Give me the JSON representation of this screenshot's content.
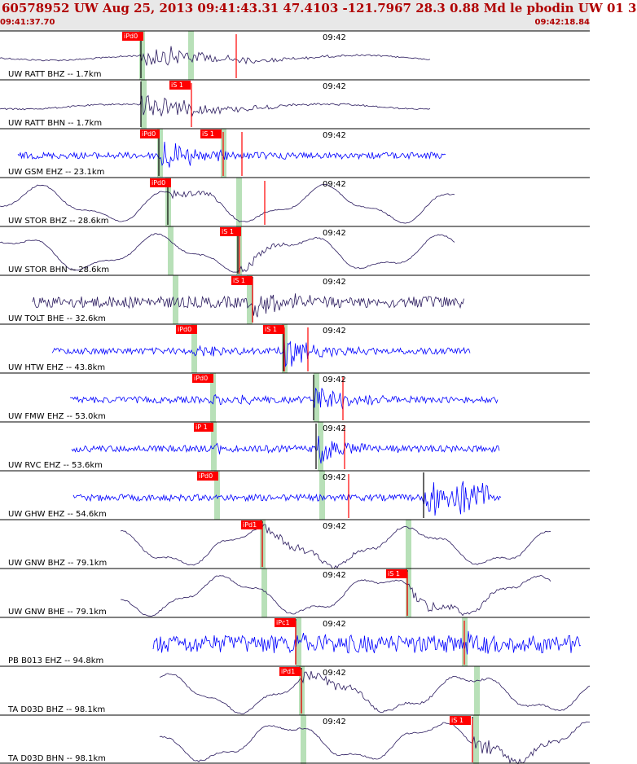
{
  "header": {
    "title": "60578952 UW Aug 25, 2013 09:41:43.31    47.4103 -121.7967 28.3 0.88 Md le pbodin UW 01    3",
    "start_time": "09:41:37.70",
    "end_time": "09:42:18.84"
  },
  "colors": {
    "dark": "#2a1a5e",
    "blue": "#0000ff",
    "pick": "#ff0000",
    "theory": "#b8e0b8"
  },
  "traces": [
    {
      "label": "UW RATT BHZ -- 1.7km",
      "color": "dark",
      "time_label": "09:42",
      "picks": [
        {
          "text": "iPd0"
        }
      ]
    },
    {
      "label": "UW RATT BHN -- 1.7km",
      "color": "dark",
      "time_label": "09:42",
      "picks": [
        {
          "text": "iS 1"
        }
      ]
    },
    {
      "label": "UW GSM EHZ -- 23.1km",
      "color": "blue",
      "time_label": "09:42",
      "picks": [
        {
          "text": "iPd0"
        },
        {
          "text": "iS 1"
        }
      ]
    },
    {
      "label": "UW STOR BHZ -- 28.6km",
      "color": "dark",
      "time_label": "09:42",
      "picks": [
        {
          "text": "iPd0"
        }
      ]
    },
    {
      "label": "UW STOR BHN -- 28.6km",
      "color": "dark",
      "time_label": "09:42",
      "picks": [
        {
          "text": "iS 1"
        }
      ]
    },
    {
      "label": "UW TOLT BHE -- 32.6km",
      "color": "dark",
      "time_label": "09:42",
      "picks": [
        {
          "text": "iS 1"
        }
      ]
    },
    {
      "label": "UW HTW EHZ -- 43.8km",
      "color": "blue",
      "time_label": "09:42",
      "picks": [
        {
          "text": "iPd0"
        },
        {
          "text": "iS 1"
        }
      ]
    },
    {
      "label": "UW FMW EHZ -- 53.0km",
      "color": "blue",
      "time_label": "09:42",
      "picks": [
        {
          "text": "iPd0"
        }
      ]
    },
    {
      "label": "UW RVC EHZ -- 53.6km",
      "color": "blue",
      "time_label": "09:42",
      "picks": [
        {
          "text": "iP 1"
        }
      ]
    },
    {
      "label": "UW GHW EHZ -- 54.6km",
      "color": "blue",
      "time_label": "09:42",
      "picks": [
        {
          "text": "iPd0"
        }
      ]
    },
    {
      "label": "UW GNW BHZ -- 79.1km",
      "color": "dark",
      "time_label": "09:42",
      "picks": [
        {
          "text": "iPd1"
        }
      ]
    },
    {
      "label": "UW GNW BHE -- 79.1km",
      "color": "dark",
      "time_label": "09:42",
      "picks": [
        {
          "text": "iS 1"
        }
      ]
    },
    {
      "label": "PB B013 EHZ -- 94.8km",
      "color": "blue",
      "time_label": "09:42",
      "picks": [
        {
          "text": "iPc1"
        }
      ]
    },
    {
      "label": "TA D03D BHZ -- 98.1km",
      "color": "dark",
      "time_label": "09:42",
      "picks": [
        {
          "text": "iPd1"
        }
      ]
    },
    {
      "label": "TA D03D BHN -- 98.1km",
      "color": "dark",
      "time_label": "09:42",
      "picks": [
        {
          "text": "iS 1"
        }
      ]
    }
  ]
}
